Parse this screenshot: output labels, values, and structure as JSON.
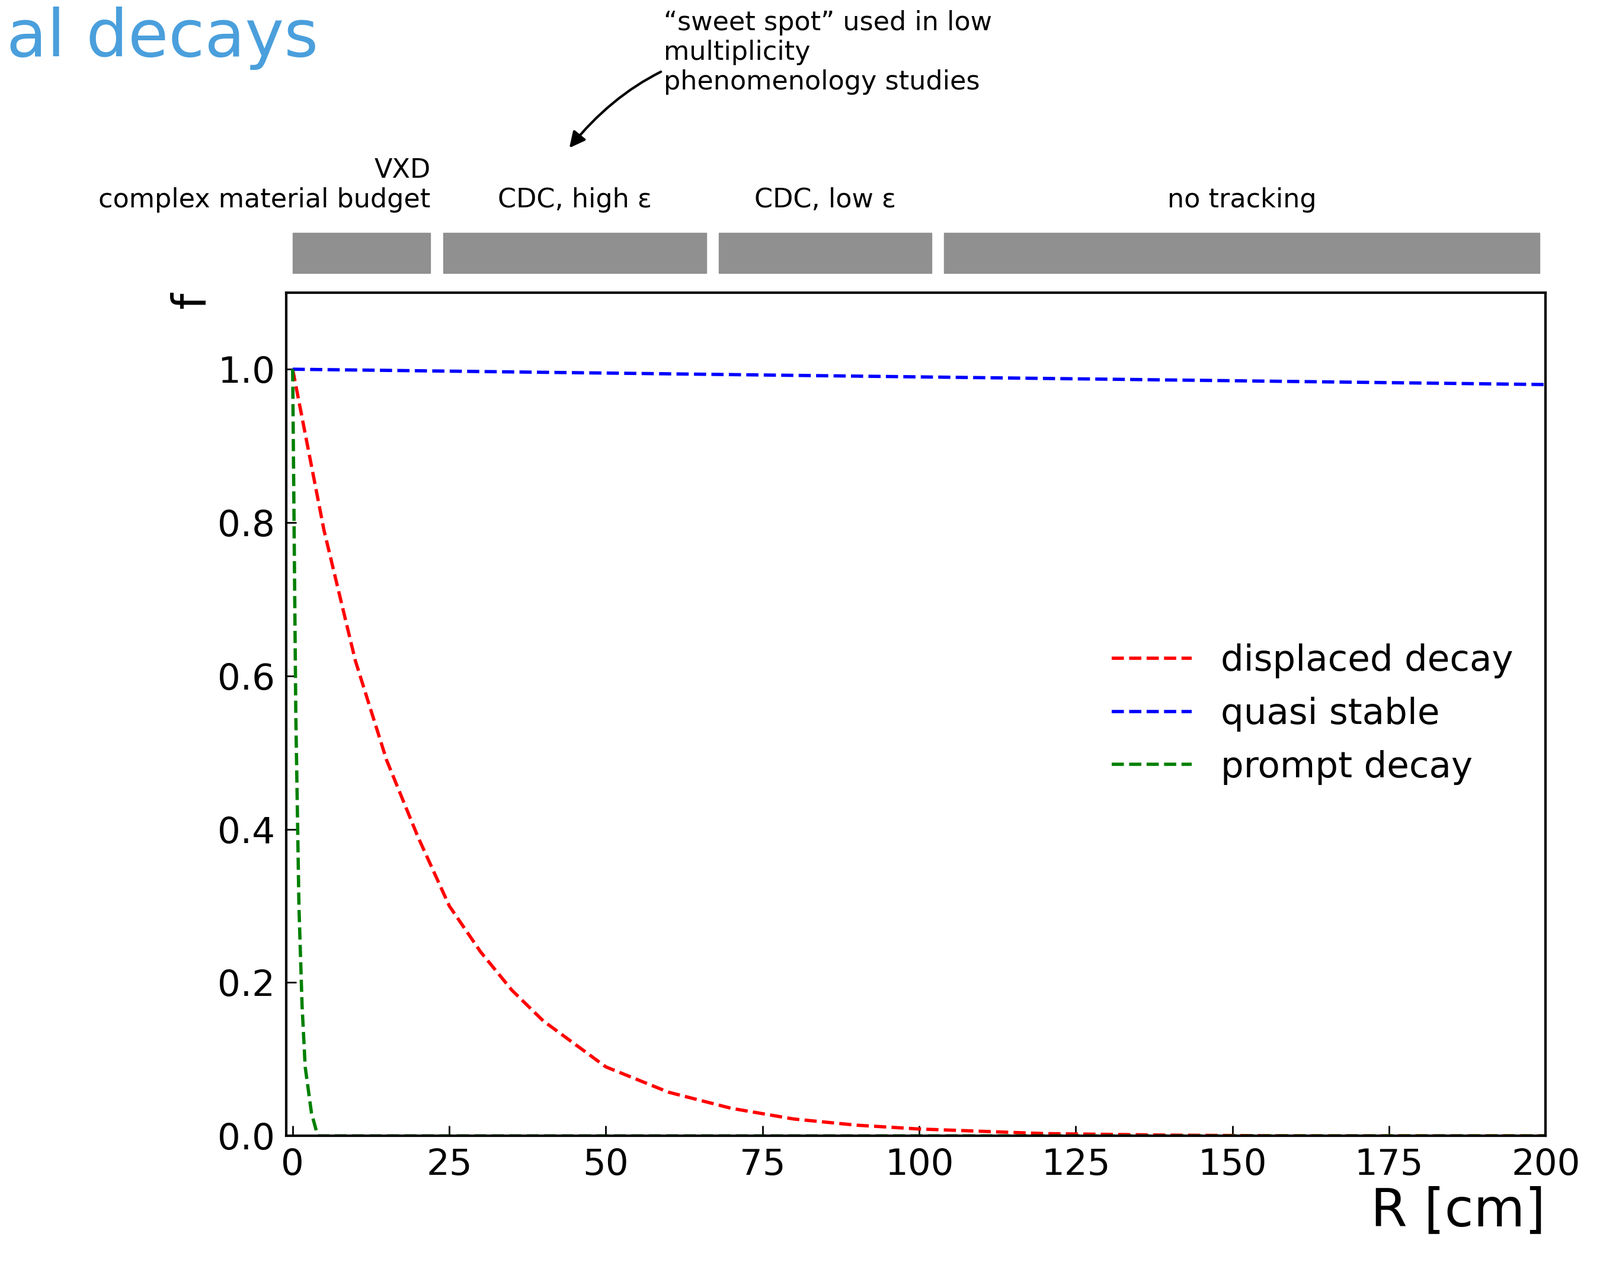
{
  "chart_data": {
    "type": "line",
    "title": "al decays",
    "x_label": "R [cm]",
    "y_label": "f",
    "xlim": [
      -1,
      200
    ],
    "ylim": [
      0,
      1.1
    ],
    "xticks": [
      0,
      25,
      50,
      75,
      100,
      125,
      150,
      175,
      200
    ],
    "yticks": [
      {
        "value": 0.0,
        "label": "0.0"
      },
      {
        "value": 0.2,
        "label": "0.2"
      },
      {
        "value": 0.4,
        "label": "0.4"
      },
      {
        "value": 0.6,
        "label": "0.6"
      },
      {
        "value": 0.8,
        "label": "0.8"
      },
      {
        "value": 1.0,
        "label": "1.0"
      }
    ],
    "legend": "center right",
    "series": [
      {
        "name": "displaced decay",
        "color": "#ff0000",
        "line_style": "dashed",
        "x": [
          0,
          5,
          10,
          15,
          20,
          25,
          30,
          35,
          40,
          45,
          50,
          60,
          70,
          80,
          90,
          100,
          120,
          140,
          160,
          200
        ],
        "values": [
          1.0,
          0.79,
          0.62,
          0.49,
          0.39,
          0.3,
          0.24,
          0.19,
          0.15,
          0.12,
          0.09,
          0.057,
          0.036,
          0.022,
          0.014,
          0.009,
          0.003,
          0.001,
          0.0,
          0.0
        ]
      },
      {
        "name": "quasi stable",
        "color": "#0000ff",
        "line_style": "dashed",
        "x": [
          0,
          50,
          100,
          150,
          200
        ],
        "values": [
          1.0,
          0.995,
          0.99,
          0.985,
          0.98
        ]
      },
      {
        "name": "prompt decay",
        "color": "#008000",
        "line_style": "dashed",
        "x": [
          0,
          0.5,
          1,
          1.5,
          2,
          3,
          4,
          200
        ],
        "values": [
          1.0,
          0.55,
          0.3,
          0.17,
          0.09,
          0.03,
          0.0,
          0.0
        ]
      }
    ],
    "regions": [
      {
        "label": "VXD\ncomplex material budget",
        "start": 0,
        "end": 22
      },
      {
        "label": "CDC, high ε",
        "start": 24,
        "end": 66
      },
      {
        "label": "CDC, low ε",
        "start": 68,
        "end": 102
      },
      {
        "label": "no tracking",
        "start": 104,
        "end": 199
      }
    ],
    "annotation": {
      "text": "“sweet spot” used in low\nmultiplicity\nphenomenology studies",
      "x": 44
    }
  }
}
